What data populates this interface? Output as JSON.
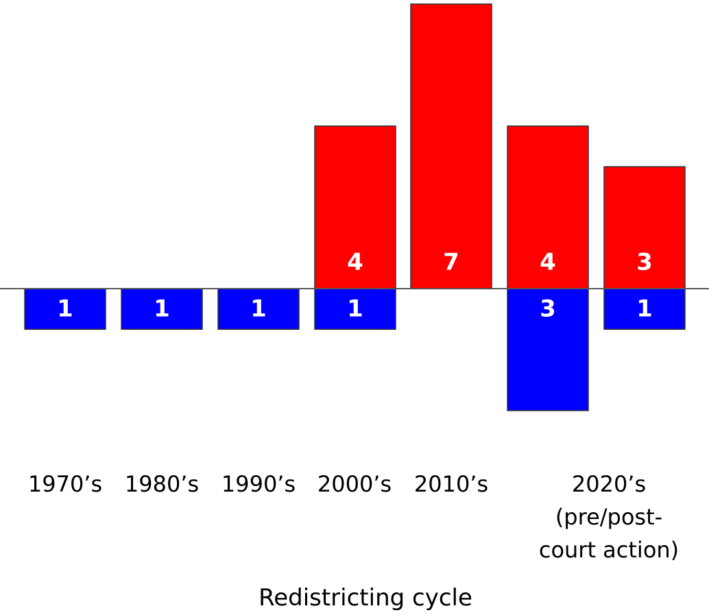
{
  "chart_data": {
    "type": "bar",
    "categories": [
      "1970’s",
      "1980’s",
      "1990’s",
      "2000’s",
      "2010’s",
      "2020’s (pre/post-court action)"
    ],
    "category_label_lines": [
      [
        "1970’s"
      ],
      [
        "1980’s"
      ],
      [
        "1990’s"
      ],
      [
        "2000’s"
      ],
      [
        "2010’s"
      ],
      [
        "2020’s",
        "(pre/post-",
        "court action)"
      ]
    ],
    "xlabel": "Redistricting cycle",
    "title": "",
    "ylabel": "",
    "grid": false,
    "legend": "none",
    "series": [
      {
        "color": "#ff0000",
        "direction": "up",
        "values": [
          0,
          0,
          0,
          4,
          7,
          [
            4,
            3
          ]
        ]
      },
      {
        "color": "#0000ff",
        "direction": "down",
        "values": [
          1,
          1,
          1,
          1,
          0,
          [
            3,
            1
          ]
        ]
      }
    ],
    "ylim": [
      -3,
      7
    ]
  }
}
